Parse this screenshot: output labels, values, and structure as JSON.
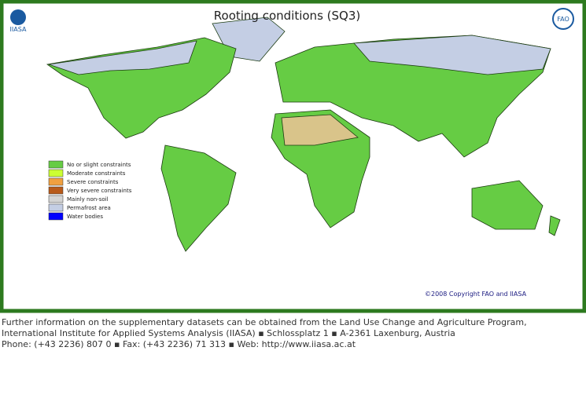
{
  "logos": {
    "left": "IIASA",
    "right": "FAO"
  },
  "title": "Rooting conditions (SQ3)",
  "legend": [
    {
      "label": "No or slight constraints",
      "color": "#66cc44"
    },
    {
      "label": "Moderate constraints",
      "color": "#ccff33"
    },
    {
      "label": "Severe constraints",
      "color": "#f0a040"
    },
    {
      "label": "Very severe constraints",
      "color": "#b85a1a"
    },
    {
      "label": "Mainly non-soil",
      "color": "#d4d4d4"
    },
    {
      "label": "Permafrost area",
      "color": "#c4cee4"
    },
    {
      "label": "Water bodies",
      "color": "#0000ff"
    }
  ],
  "copyright": "©2008 Copyright FAO and IIASA",
  "footer": [
    "Further information on the supplementary datasets can be obtained from the Land Use Change and Agriculture Program,",
    "International Institute for Applied Systems Analysis (IIASA) ▪ Schlossplatz 1 ▪ A-2361 Laxenburg, Austria",
    "Phone: (+43 2236) 807 0 ▪ Fax: (+43 2236) 71 313 ▪ Web: http://www.iiasa.ac.at"
  ]
}
